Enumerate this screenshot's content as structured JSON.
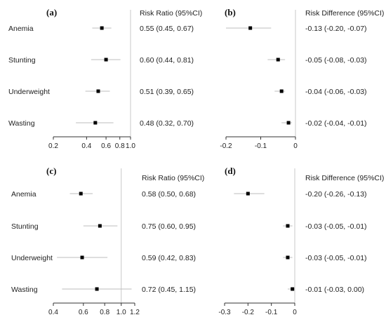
{
  "chart_data": [
    {
      "type": "forest",
      "panel_label": "(a)",
      "column_header": "Risk Ratio (95%CI)",
      "scale": "log",
      "xlim": [
        0.2,
        1.0
      ],
      "reference_line": 1.0,
      "x_ticks": [
        0.2,
        0.4,
        0.6,
        0.8,
        1.0
      ],
      "x_tick_labels": [
        "0.2",
        "0.4",
        "0.6",
        "0.8",
        "1.0"
      ],
      "rows": [
        {
          "label": "Anemia",
          "estimate": 0.55,
          "lower": 0.45,
          "upper": 0.67,
          "text": "0.55 (0.45, 0.67)"
        },
        {
          "label": "Stunting",
          "estimate": 0.6,
          "lower": 0.44,
          "upper": 0.81,
          "text": "0.60 (0.44, 0.81)"
        },
        {
          "label": "Underweight",
          "estimate": 0.51,
          "lower": 0.39,
          "upper": 0.65,
          "text": "0.51 (0.39, 0.65)"
        },
        {
          "label": "Wasting",
          "estimate": 0.48,
          "lower": 0.32,
          "upper": 0.7,
          "text": "0.48 (0.32, 0.70)"
        }
      ]
    },
    {
      "type": "forest",
      "panel_label": "(b)",
      "column_header": "Risk Difference (95%CI)",
      "scale": "linear",
      "xlim": [
        -0.2,
        0
      ],
      "reference_line": 0,
      "x_ticks": [
        -0.2,
        -0.1,
        0
      ],
      "x_tick_labels": [
        "-0.2",
        "-0.1",
        "0"
      ],
      "rows": [
        {
          "label": "Anemia",
          "estimate": -0.13,
          "lower": -0.2,
          "upper": -0.07,
          "text": "-0.13 (-0.20, -0.07)"
        },
        {
          "label": "Stunting",
          "estimate": -0.05,
          "lower": -0.08,
          "upper": -0.03,
          "text": "-0.05 (-0.08, -0.03)"
        },
        {
          "label": "Underweight",
          "estimate": -0.04,
          "lower": -0.06,
          "upper": -0.03,
          "text": "-0.04 (-0.06, -0.03)"
        },
        {
          "label": "Wasting",
          "estimate": -0.02,
          "lower": -0.04,
          "upper": -0.01,
          "text": "-0.02 (-0.04, -0.01)"
        }
      ]
    },
    {
      "type": "forest",
      "panel_label": "(c)",
      "column_header": "Risk Ratio (95%CI)",
      "scale": "log",
      "xlim": [
        0.4,
        1.2
      ],
      "reference_line": 1.0,
      "x_ticks": [
        0.4,
        0.6,
        0.8,
        1.0,
        1.2
      ],
      "x_tick_labels": [
        "0.4",
        "0.6",
        "0.8",
        "1.0",
        "1.2"
      ],
      "rows": [
        {
          "label": "Anemia",
          "estimate": 0.58,
          "lower": 0.5,
          "upper": 0.68,
          "text": "0.58 (0.50, 0.68)"
        },
        {
          "label": "Stunting",
          "estimate": 0.75,
          "lower": 0.6,
          "upper": 0.95,
          "text": "0.75 (0.60, 0.95)"
        },
        {
          "label": "Underweight",
          "estimate": 0.59,
          "lower": 0.42,
          "upper": 0.83,
          "text": "0.59 (0.42, 0.83)"
        },
        {
          "label": "Wasting",
          "estimate": 0.72,
          "lower": 0.45,
          "upper": 1.15,
          "text": "0.72 (0.45, 1.15)"
        }
      ]
    },
    {
      "type": "forest",
      "panel_label": "(d)",
      "column_header": "Risk Difference (95%CI)",
      "scale": "linear",
      "xlim": [
        -0.3,
        0
      ],
      "reference_line": 0,
      "x_ticks": [
        -0.3,
        -0.2,
        -0.1,
        0
      ],
      "x_tick_labels": [
        "-0.3",
        "-0.2",
        "-0.1",
        "0"
      ],
      "rows": [
        {
          "label": "Anemia",
          "estimate": -0.2,
          "lower": -0.26,
          "upper": -0.13,
          "text": "-0.20 (-0.26, -0.13)"
        },
        {
          "label": "Stunting",
          "estimate": -0.03,
          "lower": -0.05,
          "upper": -0.01,
          "text": "-0.03 (-0.05, -0.01)"
        },
        {
          "label": "Underweight",
          "estimate": -0.03,
          "lower": -0.05,
          "upper": -0.01,
          "text": "-0.03 (-0.05, -0.01)"
        },
        {
          "label": "Wasting",
          "estimate": -0.01,
          "lower": -0.03,
          "upper": 0.0,
          "text": "-0.01 (-0.03, 0.00)"
        }
      ]
    }
  ]
}
